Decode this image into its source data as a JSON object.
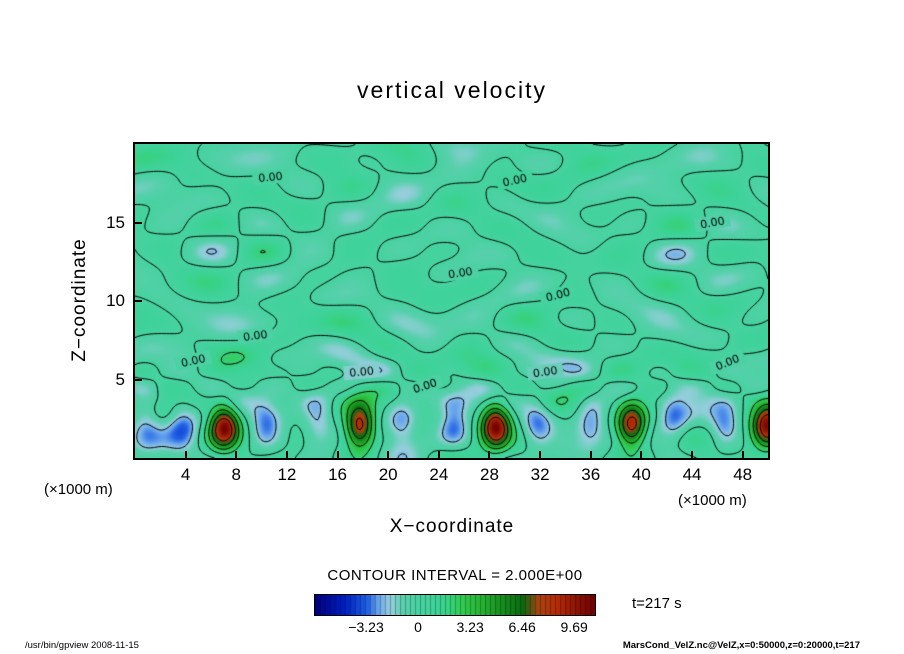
{
  "chart_data": {
    "type": "heatmap",
    "title": "vertical velocity",
    "xlabel": "X−coordinate",
    "ylabel": "Z−coordinate",
    "x_unit": "(×1000 m)",
    "y_unit": "(×1000 m)",
    "xlim": [
      0,
      50
    ],
    "ylim": [
      0,
      20
    ],
    "x_ticks": [
      4,
      8,
      12,
      16,
      20,
      24,
      28,
      32,
      36,
      40,
      44,
      48
    ],
    "y_ticks": [
      5,
      10,
      15
    ],
    "contour_interval": 2.0,
    "contour_interval_label": "CONTOUR INTERVAL = 2.000E+00",
    "contour_levels": [
      -2,
      0,
      2,
      4,
      6,
      8
    ],
    "zero_contour_label": "0.00",
    "time_label": "t=217 s",
    "colorbar_range": [
      -6.46,
      10.92
    ],
    "colorbar_ticks": [
      {
        "value": -3.23,
        "label": "−3.23"
      },
      {
        "value": 0,
        "label": "0"
      },
      {
        "value": 3.23,
        "label": "3.23"
      },
      {
        "value": 6.46,
        "label": "6.46"
      },
      {
        "value": 9.69,
        "label": "9.69"
      }
    ],
    "colormap": [
      [
        -6.46,
        "#000080"
      ],
      [
        -4.6,
        "#0020c4"
      ],
      [
        -3.23,
        "#2060e4"
      ],
      [
        -2.5,
        "#6ca8ee"
      ],
      [
        -1.8,
        "#98cede"
      ],
      [
        -1.0,
        "#58d0ac"
      ],
      [
        0.0,
        "#47d2a0"
      ],
      [
        1.0,
        "#3ed29a"
      ],
      [
        1.8,
        "#38d284"
      ],
      [
        2.6,
        "#32cc52"
      ],
      [
        3.8,
        "#28b434"
      ],
      [
        5.0,
        "#17921e"
      ],
      [
        6.46,
        "#0a6812"
      ],
      [
        7.4,
        "#a84410"
      ],
      [
        8.6,
        "#b42a08"
      ],
      [
        9.69,
        "#8e1604"
      ],
      [
        10.92,
        "#700000"
      ]
    ],
    "field": {
      "seed": 7,
      "noise_modes": 12,
      "noise_amp": 0.78,
      "plumes": {
        "x": [
          7.0,
          17.75,
          28.5,
          39.25,
          50.0
        ],
        "amp": [
          9.8,
          9.5,
          9.9,
          9.3,
          9.7
        ],
        "sigma_x": 1.15,
        "z_center": 2.0,
        "sigma_z": 1.4
      },
      "downdrafts": {
        "x": [
          0.8,
          3.7,
          10.3,
          14.4,
          21.1,
          25.2,
          31.8,
          36.0,
          42.6,
          46.7
        ],
        "amp": -2.7,
        "sigma_x": 1.2,
        "z_center": 2.2,
        "sigma_z": 1.6
      }
    },
    "contour_labels": [
      {
        "x": 10.7,
        "z": 17.9,
        "r": -6
      },
      {
        "x": 30.0,
        "z": 17.7,
        "r": -12
      },
      {
        "x": 45.6,
        "z": 15.0,
        "r": -10
      },
      {
        "x": 25.7,
        "z": 11.8,
        "r": -8
      },
      {
        "x": 33.4,
        "z": 10.4,
        "r": -15
      },
      {
        "x": 9.5,
        "z": 7.8,
        "r": -8
      },
      {
        "x": 4.6,
        "z": 6.2,
        "r": -12
      },
      {
        "x": 17.9,
        "z": 5.5,
        "r": -6
      },
      {
        "x": 22.9,
        "z": 4.6,
        "r": -18
      },
      {
        "x": 32.4,
        "z": 5.5,
        "r": -8
      },
      {
        "x": 46.8,
        "z": 6.1,
        "r": -22
      }
    ]
  },
  "footer": {
    "left": "/usr/bin/gpview  2008-11-15",
    "right": "MarsCond_VelZ.nc@VelZ,x=0:50000,z=0:20000,t=217"
  }
}
